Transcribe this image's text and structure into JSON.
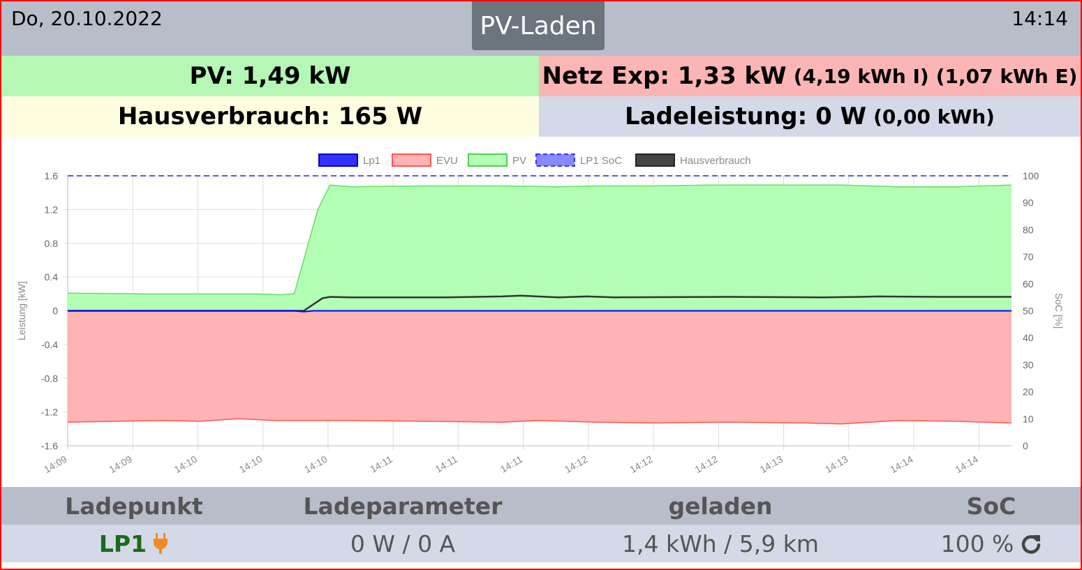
{
  "header": {
    "date": "Do, 20.10.2022",
    "title": "PV-Laden",
    "time": "14:14"
  },
  "status": {
    "pv": "PV: 1,49 kW",
    "netz_main": "Netz Exp: 1,33 kW",
    "netz_import": "(4,19 kWh I)",
    "netz_export": "(1,07 kWh E)",
    "hausverbrauch": "Hausverbrauch: 165 W",
    "ladeleistung_main": "Ladeleistung: 0 W",
    "ladeleistung_energy": "(0,00 kWh)"
  },
  "colors": {
    "pv_bg": "#b5f7b5",
    "netz_bg": "#fcb5b5",
    "haus_bg": "#fffde0",
    "lade_bg": "#d3d9e6",
    "header_bg": "#b8bdca",
    "mode_button": "#6c757d",
    "lp1_green": "#1a6b1a",
    "plug_orange": "#f08a24"
  },
  "chart_data": {
    "type": "area",
    "legend_position": "top",
    "legend": [
      "Lp1",
      "EVU",
      "PV",
      "LP1 SoC",
      "Hausverbrauch"
    ],
    "ylabel": "Leistung [kW]",
    "y2label": "SoC [%]",
    "ylim": [
      -1.6,
      1.6
    ],
    "y2lim": [
      0,
      100
    ],
    "yticks": [
      "1.6",
      "1.2",
      "0.8",
      "0.4",
      "0",
      "-0.4",
      "-0.8",
      "-1.2",
      "-1.6"
    ],
    "y2ticks": [
      "100",
      "90",
      "80",
      "70",
      "60",
      "50",
      "40",
      "30",
      "20",
      "10",
      "0"
    ],
    "xticks": [
      "14:09",
      "14:09",
      "14:10",
      "14:10",
      "14:10",
      "14:11",
      "14:11",
      "14:11",
      "14:12",
      "14:12",
      "14:12",
      "14:13",
      "14:13",
      "14:14",
      "14:14"
    ],
    "grid": true,
    "series": [
      {
        "name": "Lp1",
        "color": "#0000ff",
        "points": [
          [
            0,
            0
          ],
          [
            0.24,
            0
          ],
          [
            0.25,
            -0.01
          ],
          [
            0.26,
            0
          ],
          [
            1,
            0
          ]
        ]
      },
      {
        "name": "EVU",
        "color": "#ff5555",
        "fill": "#ffb3b3",
        "points": [
          [
            0,
            -1.32
          ],
          [
            0.05,
            -1.31
          ],
          [
            0.1,
            -1.3
          ],
          [
            0.14,
            -1.31
          ],
          [
            0.18,
            -1.28
          ],
          [
            0.22,
            -1.3
          ],
          [
            0.3,
            -1.3
          ],
          [
            0.38,
            -1.31
          ],
          [
            0.46,
            -1.32
          ],
          [
            0.5,
            -1.3
          ],
          [
            0.56,
            -1.32
          ],
          [
            0.62,
            -1.33
          ],
          [
            0.7,
            -1.32
          ],
          [
            0.78,
            -1.33
          ],
          [
            0.82,
            -1.34
          ],
          [
            0.88,
            -1.3
          ],
          [
            0.94,
            -1.31
          ],
          [
            1,
            -1.33
          ]
        ]
      },
      {
        "name": "PV",
        "color": "#66dd66",
        "fill": "#b3ffb3",
        "points": [
          [
            0,
            0.21
          ],
          [
            0.08,
            0.2
          ],
          [
            0.2,
            0.2
          ],
          [
            0.225,
            0.19
          ],
          [
            0.24,
            0.2
          ],
          [
            0.265,
            1.2
          ],
          [
            0.278,
            1.49
          ],
          [
            0.3,
            1.47
          ],
          [
            0.38,
            1.48
          ],
          [
            0.46,
            1.48
          ],
          [
            0.52,
            1.47
          ],
          [
            0.56,
            1.48
          ],
          [
            0.62,
            1.48
          ],
          [
            0.68,
            1.49
          ],
          [
            0.74,
            1.49
          ],
          [
            0.82,
            1.49
          ],
          [
            0.88,
            1.47
          ],
          [
            0.94,
            1.47
          ],
          [
            1,
            1.49
          ]
        ]
      },
      {
        "name": "LP1 SoC",
        "color": "#5555ff",
        "dashed": true,
        "axis": "y2",
        "points": [
          [
            0,
            100
          ],
          [
            1,
            100
          ]
        ]
      },
      {
        "name": "Hausverbrauch",
        "color": "#333333",
        "points": [
          [
            0,
            0
          ],
          [
            0.24,
            0
          ],
          [
            0.25,
            0
          ],
          [
            0.27,
            0.15
          ],
          [
            0.278,
            0.165
          ],
          [
            0.3,
            0.16
          ],
          [
            0.4,
            0.16
          ],
          [
            0.46,
            0.17
          ],
          [
            0.48,
            0.18
          ],
          [
            0.52,
            0.16
          ],
          [
            0.55,
            0.17
          ],
          [
            0.58,
            0.16
          ],
          [
            0.7,
            0.165
          ],
          [
            0.8,
            0.16
          ],
          [
            0.84,
            0.165
          ],
          [
            0.86,
            0.17
          ],
          [
            0.92,
            0.165
          ],
          [
            1,
            0.165
          ]
        ]
      }
    ]
  },
  "table": {
    "headers": [
      "Ladepunkt",
      "Ladeparameter",
      "geladen",
      "SoC"
    ],
    "lp_name": "LP1",
    "parameter": "0 W / 0 A",
    "geladen": "1,4 kWh / 5,9 km",
    "soc": "100 %",
    "plug_icon": "plug-icon",
    "refresh_icon": "refresh-icon"
  }
}
